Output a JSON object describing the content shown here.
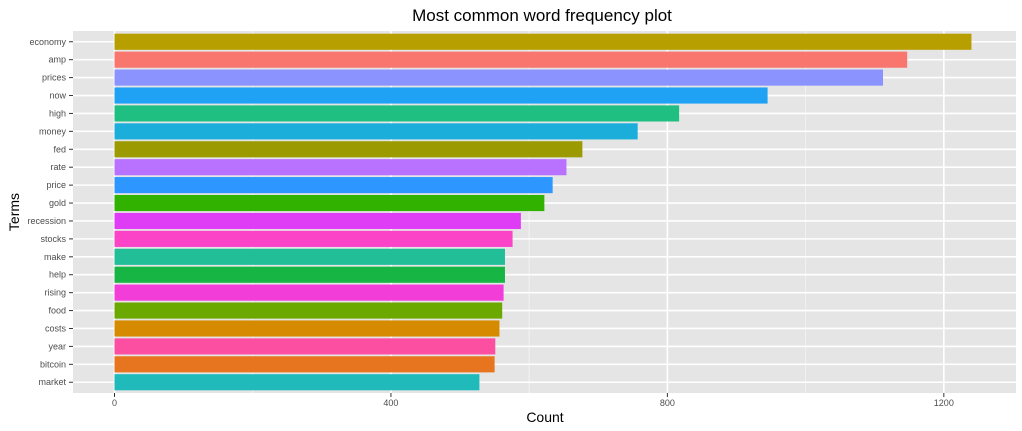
{
  "chart_data": {
    "type": "bar",
    "orientation": "horizontal",
    "title": "Most common word frequency plot",
    "xlabel": "Count",
    "ylabel": "Terms",
    "xlim": [
      -60,
      1300
    ],
    "xticks": [
      0,
      400,
      800,
      1200
    ],
    "grid": true,
    "legend": "none",
    "categories": [
      "economy",
      "amp",
      "prices",
      "now",
      "high",
      "money",
      "fed",
      "rate",
      "price",
      "gold",
      "recession",
      "stocks",
      "make",
      "help",
      "rising",
      "food",
      "costs",
      "year",
      "bitcoin",
      "market"
    ],
    "values": [
      1240,
      1147,
      1112,
      945,
      817,
      757,
      677,
      654,
      634,
      622,
      588,
      576,
      565,
      565,
      563,
      561,
      557,
      551,
      550,
      528
    ],
    "colors": [
      "#B79F00",
      "#F8766D",
      "#8B93FF",
      "#1FA2F4",
      "#1FBF81",
      "#1CAEDB",
      "#9B9A00",
      "#B972FF",
      "#2E97FF",
      "#31B200",
      "#DF3DF5",
      "#FA43C6",
      "#21BE98",
      "#17B644",
      "#F23DD9",
      "#6BA800",
      "#D58A00",
      "#FC4FA1",
      "#E7741F",
      "#1FBAB9"
    ]
  }
}
